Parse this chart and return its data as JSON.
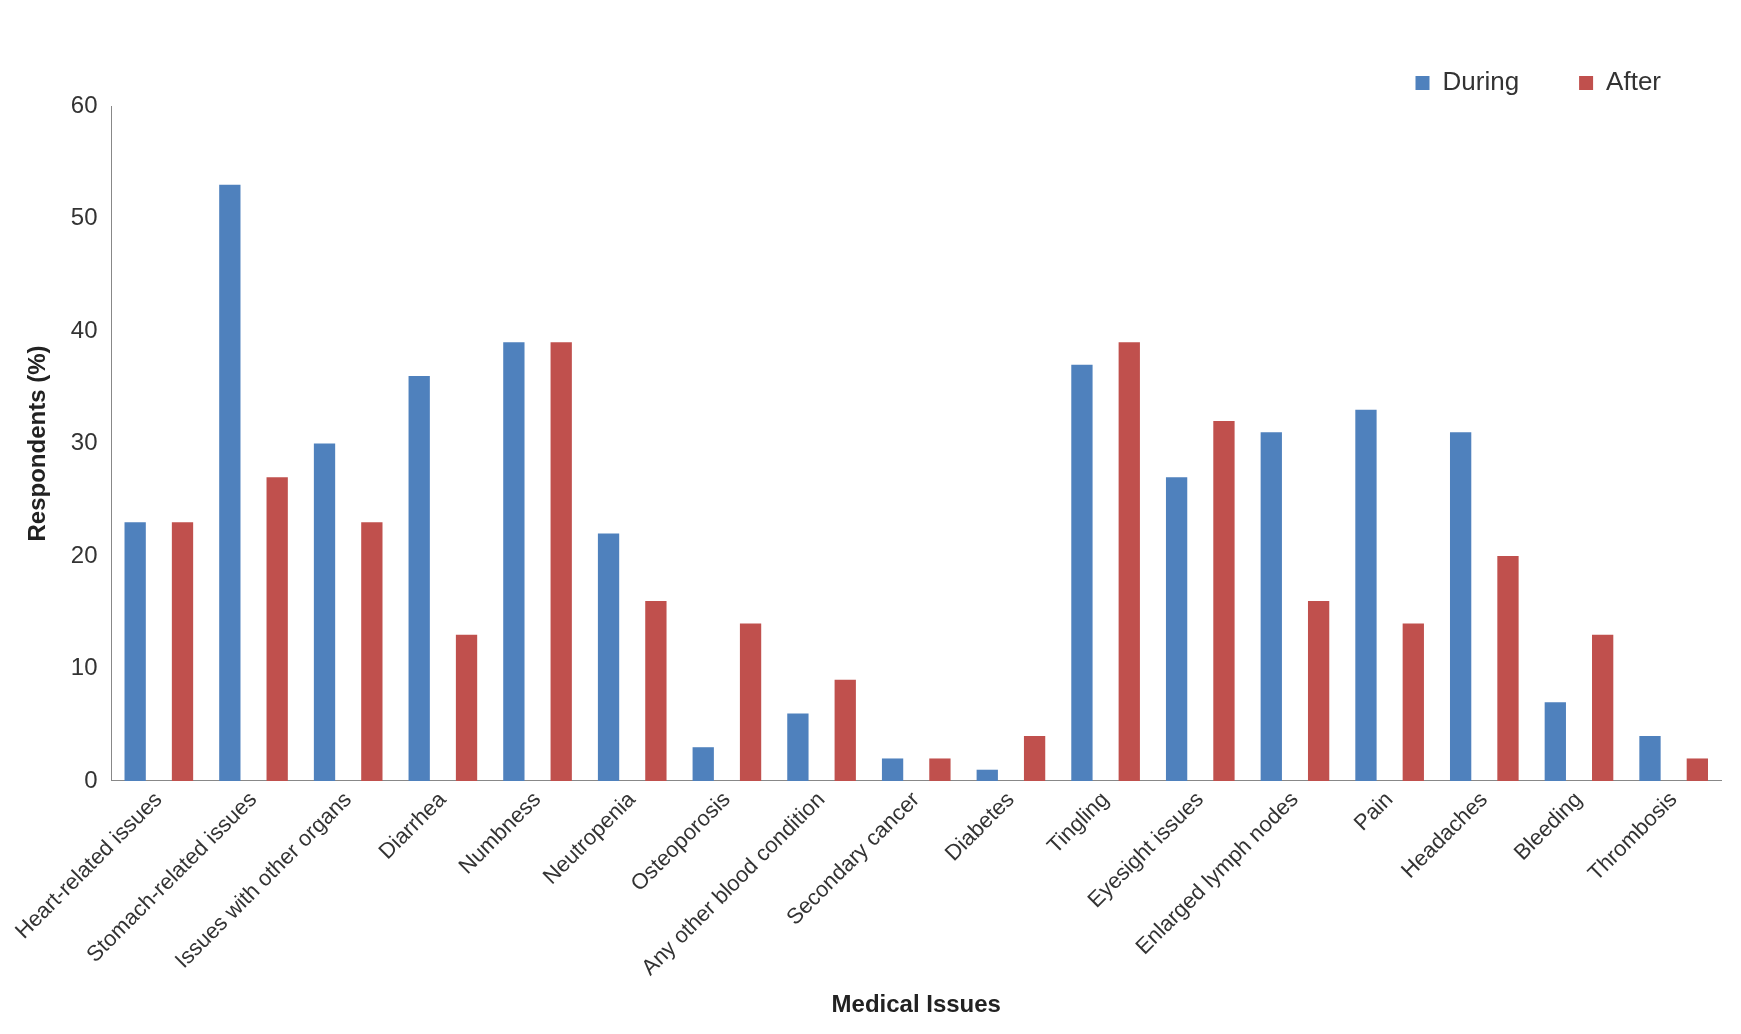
{
  "chart_data": {
    "type": "bar",
    "xlabel": "Medical Issues",
    "ylabel": "Respondents (%)",
    "categories": [
      "Heart-related issues",
      "Stomach-related issues",
      "Issues with other organs",
      "Diarrhea",
      "Numbness",
      "Neutropenia",
      "Osteoporosis",
      "Any other blood condition",
      "Secondary cancer",
      "Diabetes",
      "Tingling",
      "Eyesight issues",
      "Enlarged lymph nodes",
      "Pain",
      "Headaches",
      "Bleeding",
      "Thrombosis"
    ],
    "series": [
      {
        "name": "During",
        "color": "#4f81bd",
        "values": [
          23,
          53,
          30,
          36,
          39,
          22,
          3,
          6,
          2,
          1,
          37,
          27,
          31,
          33,
          31,
          7,
          4
        ]
      },
      {
        "name": "After",
        "color": "#c0504d",
        "values": [
          23,
          27,
          23,
          13,
          39,
          16,
          14,
          9,
          2,
          4,
          39,
          32,
          16,
          14,
          20,
          13,
          2
        ]
      }
    ],
    "ylim": [
      0,
      60
    ],
    "yticks": [
      0,
      10,
      20,
      30,
      40,
      50,
      60
    ],
    "grid": false,
    "legend": "top right"
  }
}
